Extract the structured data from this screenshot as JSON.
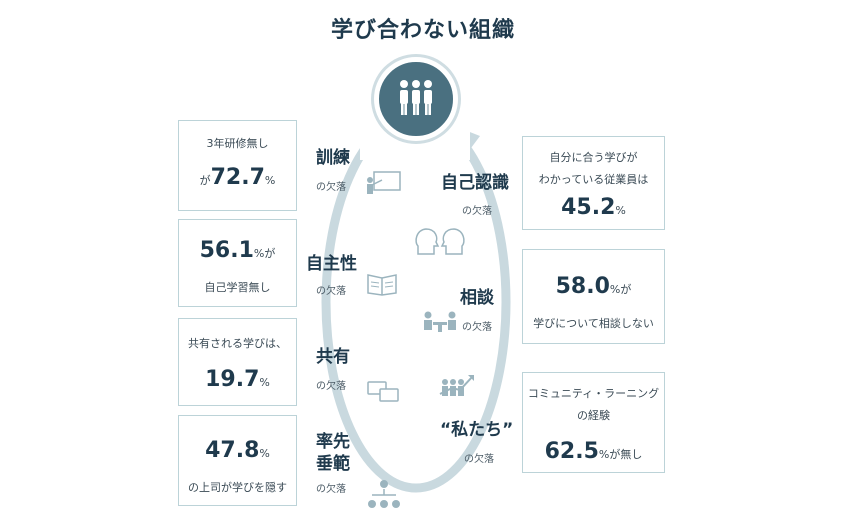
{
  "title": "学び合わない組織",
  "left_boxes": [
    {
      "line1": "3年研修無し",
      "prefix": "が",
      "value": "72.7",
      "unit": "%"
    },
    {
      "value": "56.1",
      "unit": "%が",
      "line2": "自己学習無し"
    },
    {
      "line1": "共有される学びは、",
      "value": "19.7",
      "unit": "%"
    },
    {
      "value": "47.8",
      "unit": "%",
      "line2": "の上司が学びを隠す"
    }
  ],
  "right_boxes": [
    {
      "line1": "自分に合う学びが",
      "line2": "わかっている従業員は",
      "value": "45.2",
      "unit": "%"
    },
    {
      "value": "58.0",
      "unit": "%が",
      "line2": "学びについて相談しない"
    },
    {
      "line1": "コミュニティ・ラーニング",
      "line2": "の経験",
      "value": "62.5",
      "unit": "%が無し"
    }
  ],
  "left_labels": [
    {
      "name": "訓練",
      "sub": "の欠落"
    },
    {
      "name": "自主性",
      "sub": "の欠落"
    },
    {
      "name": "共有",
      "sub": "の欠落"
    },
    {
      "name1": "率先",
      "name2": "垂範",
      "sub": "の欠落"
    }
  ],
  "right_labels": [
    {
      "name": "自己認識",
      "sub": "の欠落"
    },
    {
      "name": "相談",
      "sub": "の欠落"
    },
    {
      "name": "“私たち”",
      "sub": "の欠落"
    }
  ],
  "icons": [
    "people-icon",
    "presentation-icon",
    "book-icon",
    "chat-icon",
    "hierarchy-icon",
    "heads-icon",
    "meeting-icon",
    "growth-icon"
  ],
  "colors": {
    "accent": "#4a7080",
    "loop": "#c9d9df",
    "text": "#1f3a4d",
    "border": "#bcd3d8"
  }
}
